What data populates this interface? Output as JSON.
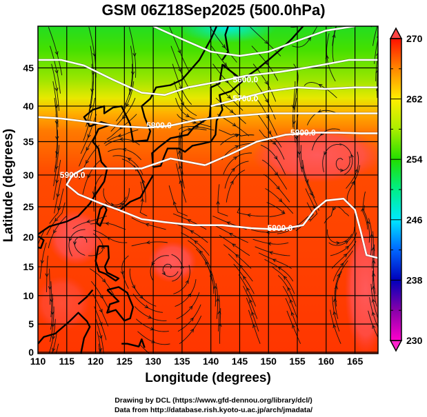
{
  "title": "GSM 06Z18Sep2025 (500.0hPa)",
  "chart_data": {
    "type": "heatmap",
    "title": "GSM 06Z18Sep2025 (500.0hPa)",
    "xlabel": "Longitude (degrees)",
    "ylabel": "Latitude  (degrees)",
    "xlim": [
      110,
      169
    ],
    "ylim": [
      0,
      50
    ],
    "x_ticks": [
      "110",
      "115",
      "120",
      "125",
      "130",
      "135",
      "140",
      "145",
      "150",
      "155",
      "160",
      "165"
    ],
    "y_ticks": [
      "0",
      "5",
      "10",
      "15",
      "20",
      "25",
      "30",
      "35",
      "40",
      "45"
    ],
    "x_tick_values": [
      110,
      115,
      120,
      125,
      130,
      135,
      140,
      145,
      150,
      155,
      160,
      165
    ],
    "y_tick_values": [
      0,
      5,
      10,
      15,
      20,
      25,
      30,
      35,
      40,
      45
    ],
    "grid": true,
    "projection": "mercator",
    "colorbar": {
      "range": [
        230,
        270
      ],
      "labels": [
        "270",
        "262",
        "254",
        "246",
        "238",
        "230"
      ],
      "label_values": [
        270,
        262,
        254,
        246,
        238,
        230
      ],
      "colors": [
        "#ff00cc",
        "#8800aa",
        "#0000cc",
        "#0088ff",
        "#00eeff",
        "#00ee88",
        "#22dd00",
        "#aaee00",
        "#ffee00",
        "#ffaa00",
        "#ff6600",
        "#ff0000"
      ],
      "extend": "both"
    },
    "contours": [
      {
        "label": "5600.0",
        "value": 5600
      },
      {
        "label": "5700.0",
        "value": 5700
      },
      {
        "label": "5800.0",
        "value": 5800
      },
      {
        "label": "5900.0",
        "value": 5900
      }
    ],
    "contour_labels_shown": [
      {
        "text": "5600.0",
        "lon": 146,
        "lat": 43.5
      },
      {
        "text": "5700.0",
        "lon": 146,
        "lat": 41
      },
      {
        "text": "5800.0",
        "lon": 131,
        "lat": 37.3
      },
      {
        "text": "5900.0",
        "lon": 156,
        "lat": 36.3
      },
      {
        "text": "5900.0",
        "lon": 116,
        "lat": 30
      },
      {
        "text": "5900.0",
        "lon": 152,
        "lat": 21.5
      }
    ],
    "field_description_values": {
      "north_min_temp": 248,
      "south_temp": 268
    },
    "vortices": [
      {
        "lon": 163,
        "lat": 32
      },
      {
        "lon": 133,
        "lat": 15
      },
      {
        "lon": 117,
        "lat": 19.5
      },
      {
        "lon": 163,
        "lat": 22
      },
      {
        "lon": 123,
        "lat": 28
      }
    ]
  },
  "credits": {
    "line1": "Drawing by DCL (https://www.gfd-dennou.org/library/dcl/)",
    "line2": "Data from http://database.rish.kyoto-u.ac.jp/arch/jmadata/"
  }
}
